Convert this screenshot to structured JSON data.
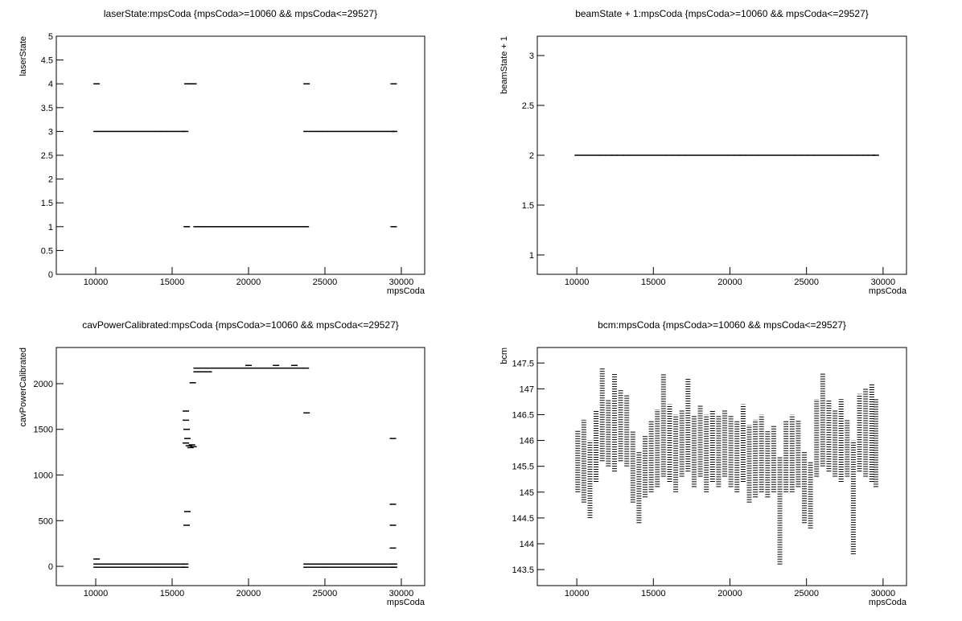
{
  "chart_data": [
    {
      "type": "scatter",
      "title": "laserState:mpsCoda {mpsCoda>=10060 && mpsCoda<=29527}",
      "xlabel": "mpsCoda",
      "ylabel": "laserState",
      "color": "#000000",
      "x": [
        10060,
        10460,
        10860,
        11260,
        11660,
        12060,
        12460,
        12860,
        13260,
        13660,
        14060,
        14460,
        14860,
        15260,
        15660,
        15860,
        10060,
        16000,
        16200,
        16400,
        23800,
        29500,
        15960,
        16600,
        17000,
        17400,
        17800,
        18200,
        18600,
        19000,
        19400,
        19800,
        20200,
        20600,
        21000,
        21400,
        21800,
        22200,
        22600,
        23000,
        23400,
        23750,
        29500,
        23800,
        24200,
        24600,
        25000,
        25400,
        25800,
        26200,
        26600,
        27000,
        27400,
        27800,
        28200,
        28600,
        29000,
        29400,
        29527
      ],
      "y": [
        3,
        3,
        3,
        3,
        3,
        3,
        3,
        3,
        3,
        3,
        3,
        3,
        3,
        3,
        3,
        3,
        4,
        4,
        4,
        4,
        4,
        4,
        1,
        1,
        1,
        1,
        1,
        1,
        1,
        1,
        1,
        1,
        1,
        1,
        1,
        1,
        1,
        1,
        1,
        1,
        1,
        1,
        1,
        3,
        3,
        3,
        3,
        3,
        3,
        3,
        3,
        3,
        3,
        3,
        3,
        3,
        3,
        3,
        3
      ],
      "xlim": [
        7420,
        31530
      ],
      "xticks": [
        10000,
        15000,
        20000,
        25000,
        30000
      ],
      "ylim": [
        0,
        5
      ],
      "yticks": [
        0,
        0.5,
        1,
        1.5,
        2,
        2.5,
        3,
        3.5,
        4,
        4.5,
        5
      ]
    },
    {
      "type": "scatter",
      "title": "beamState + 1:mpsCoda {mpsCoda>=10060 && mpsCoda<=29527}",
      "xlabel": "mpsCoda",
      "ylabel": "beamState + 1",
      "color": "#000000",
      "x": [
        10060,
        10460,
        10860,
        11260,
        11660,
        12060,
        12460,
        12860,
        13260,
        13660,
        14060,
        14460,
        14860,
        15260,
        15660,
        16060,
        16460,
        16860,
        17260,
        17660,
        18060,
        18460,
        18860,
        19260,
        19660,
        20060,
        20460,
        20860,
        21260,
        21660,
        22060,
        22460,
        22860,
        23260,
        23660,
        24060,
        24460,
        24860,
        25260,
        25660,
        26060,
        26460,
        26860,
        27260,
        27660,
        28060,
        28460,
        28860,
        29260,
        29527
      ],
      "y": [
        2,
        2,
        2,
        2,
        2,
        2,
        2,
        2,
        2,
        2,
        2,
        2,
        2,
        2,
        2,
        2,
        2,
        2,
        2,
        2,
        2,
        2,
        2,
        2,
        2,
        2,
        2,
        2,
        2,
        2,
        2,
        2,
        2,
        2,
        2,
        2,
        2,
        2,
        2,
        2,
        2,
        2,
        2,
        2,
        2,
        2,
        2,
        2,
        2,
        2
      ],
      "xlim": [
        7420,
        31530
      ],
      "xticks": [
        10000,
        15000,
        20000,
        25000,
        30000
      ],
      "ylim": [
        0.806,
        3.194
      ],
      "yticks": [
        1,
        1.5,
        2,
        2.5,
        3
      ]
    },
    {
      "type": "scatter",
      "title": "cavPowerCalibrated:mpsCoda {mpsCoda>=10060 && mpsCoda<=29527}",
      "xlabel": "mpsCoda",
      "ylabel": "cavPowerCalibrated",
      "color": "#000000",
      "x": [
        10060,
        10460,
        10860,
        11260,
        11660,
        12060,
        12460,
        12860,
        13260,
        13660,
        14060,
        14460,
        14860,
        15260,
        15660,
        15860,
        10060,
        10460,
        10860,
        11260,
        11660,
        12060,
        12460,
        12860,
        13260,
        13660,
        14060,
        14460,
        14860,
        15260,
        15660,
        15860,
        23800,
        24200,
        24600,
        25000,
        25400,
        25800,
        26200,
        26600,
        27000,
        27400,
        27800,
        28200,
        28600,
        29000,
        29400,
        29527,
        23800,
        24200,
        24600,
        25000,
        25400,
        25800,
        26200,
        26600,
        27000,
        27400,
        27800,
        28200,
        28600,
        29000,
        29400,
        29527,
        16600,
        17000,
        17400,
        17800,
        18200,
        18600,
        19000,
        19400,
        19800,
        20200,
        20600,
        21000,
        21400,
        21800,
        22200,
        22600,
        23000,
        23400,
        23750,
        16600,
        17000,
        17400,
        15900,
        15900,
        15950,
        16000,
        16100,
        16200,
        16300,
        16400,
        15900,
        16000,
        15950,
        16350,
        23800,
        29450,
        29450,
        29450,
        29450,
        10060,
        20000,
        21800,
        23000
      ],
      "y": [
        25,
        25,
        25,
        25,
        25,
        25,
        25,
        25,
        25,
        25,
        25,
        25,
        25,
        25,
        25,
        25,
        -10,
        -10,
        -10,
        -10,
        -10,
        -10,
        -10,
        -10,
        -10,
        -10,
        -10,
        -10,
        -10,
        -10,
        -10,
        -10,
        25,
        25,
        25,
        25,
        25,
        25,
        25,
        25,
        25,
        25,
        25,
        25,
        25,
        25,
        25,
        25,
        -10,
        -10,
        -10,
        -10,
        -10,
        -10,
        -10,
        -10,
        -10,
        -10,
        -10,
        -10,
        -10,
        -10,
        -10,
        -10,
        2170,
        2170,
        2170,
        2170,
        2170,
        2170,
        2170,
        2170,
        2170,
        2170,
        2170,
        2170,
        2170,
        2170,
        2170,
        2170,
        2170,
        2170,
        2170,
        2130,
        2130,
        2130,
        1350,
        1700,
        1500,
        1400,
        1320,
        1300,
        1330,
        1310,
        1600,
        600,
        450,
        2010,
        1680,
        1400,
        680,
        450,
        200,
        80,
        2200,
        2200,
        2200
      ],
      "xlim": [
        7420,
        31530
      ],
      "xticks": [
        10000,
        15000,
        20000,
        25000,
        30000
      ],
      "ylim": [
        -211,
        2396
      ],
      "yticks": [
        0,
        500,
        1000,
        1500,
        2000
      ]
    },
    {
      "type": "range",
      "title": "bcm:mpsCoda {mpsCoda>=10060 && mpsCoda<=29527}",
      "xlabel": "mpsCoda",
      "ylabel": "bcm",
      "color": "#000000",
      "x": [
        10060,
        10460,
        10860,
        11260,
        11660,
        12060,
        12460,
        12860,
        13260,
        13660,
        14060,
        14460,
        14860,
        15260,
        15660,
        16060,
        16460,
        16860,
        17260,
        17660,
        18060,
        18460,
        18860,
        19260,
        19660,
        20060,
        20460,
        20860,
        21260,
        21660,
        22060,
        22460,
        22860,
        23260,
        23660,
        24060,
        24460,
        24860,
        25260,
        25660,
        26060,
        26460,
        26860,
        27260,
        27660,
        28060,
        28460,
        28860,
        29260,
        29527
      ],
      "low": [
        145.0,
        144.8,
        144.5,
        145.2,
        145.6,
        145.5,
        145.4,
        145.6,
        145.5,
        144.8,
        144.4,
        144.9,
        145.0,
        145.1,
        145.3,
        145.2,
        145.0,
        145.3,
        145.4,
        145.1,
        145.3,
        145.0,
        145.2,
        145.1,
        145.3,
        145.1,
        145.0,
        145.2,
        144.8,
        144.9,
        145.0,
        144.9,
        145.0,
        143.6,
        145.0,
        145.0,
        145.1,
        144.4,
        144.3,
        145.3,
        145.5,
        145.4,
        145.3,
        145.2,
        145.3,
        143.8,
        145.4,
        145.3,
        145.2,
        145.1
      ],
      "high": [
        146.2,
        146.4,
        146.0,
        146.6,
        147.4,
        146.8,
        147.3,
        147.0,
        146.9,
        146.2,
        145.8,
        146.1,
        146.4,
        146.6,
        147.3,
        146.7,
        146.5,
        146.6,
        147.2,
        146.5,
        146.7,
        146.5,
        146.6,
        146.5,
        146.6,
        146.5,
        146.4,
        146.7,
        146.3,
        146.4,
        146.5,
        146.2,
        146.3,
        145.7,
        146.4,
        146.5,
        146.4,
        145.8,
        145.6,
        146.8,
        147.3,
        146.8,
        146.6,
        146.8,
        146.4,
        146.0,
        146.9,
        147.0,
        147.1,
        146.8
      ],
      "xlim": [
        7420,
        31530
      ],
      "xticks": [
        10000,
        15000,
        20000,
        25000,
        30000
      ],
      "ylim": [
        143.19,
        147.8
      ],
      "yticks": [
        143.5,
        144,
        144.5,
        145,
        145.5,
        146,
        146.5,
        147,
        147.5
      ]
    }
  ]
}
